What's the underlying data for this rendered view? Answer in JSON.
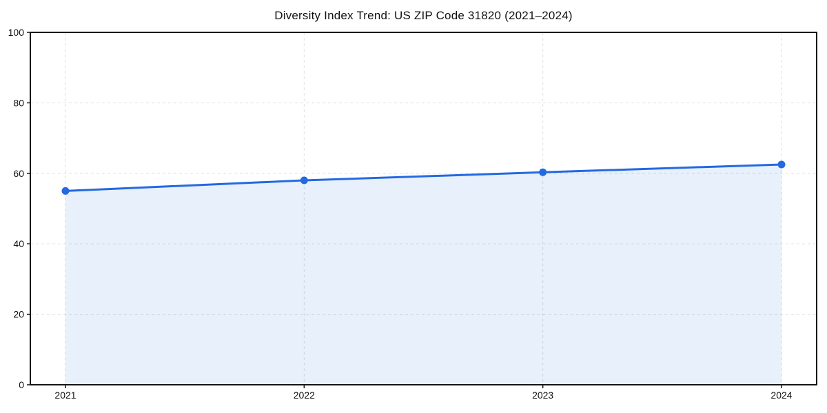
{
  "chart_data": {
    "type": "area",
    "title": "Diversity Index Trend: US ZIP Code 31820 (2021–2024)",
    "categories": [
      "2021",
      "2022",
      "2023",
      "2024"
    ],
    "values": [
      55,
      58,
      60.3,
      62.5
    ],
    "xlabel": "",
    "ylabel": "",
    "ylim": [
      0,
      100
    ],
    "yticks": [
      0,
      20,
      40,
      60,
      80,
      100
    ],
    "grid": true,
    "grid_style": "dashed",
    "legend": "none",
    "marker": "circle",
    "colors": {
      "line": "#2369e1",
      "marker": "#2369e1",
      "fill": "rgba(34,105,226,0.10)",
      "grid": "#dedede",
      "spine": "#141414",
      "text": "#111111",
      "background": "#ffffff"
    }
  }
}
